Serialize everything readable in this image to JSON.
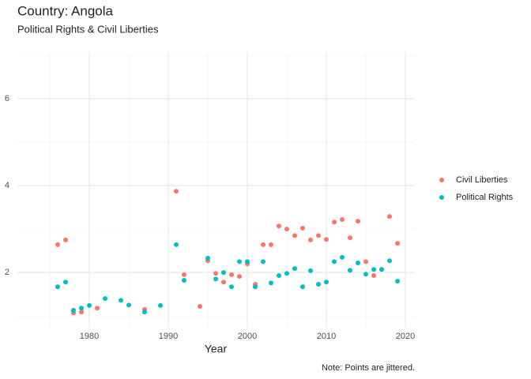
{
  "chart_data": {
    "type": "scatter",
    "title": "Country: Angola",
    "subtitle": "Political Rights & Civil Liberties",
    "x_label": "Year",
    "caption": "Note: Points are jittered.",
    "xlim": [
      1970.9,
      2021.2
    ],
    "ylim": [
      0.73,
      7.09
    ],
    "xticks": [
      1980,
      1990,
      2000,
      2010,
      2020
    ],
    "yticks": [
      2,
      4,
      6
    ],
    "x_minor_grid": [
      1975,
      1985,
      1995,
      2005,
      2015
    ],
    "y_minor_grid": [
      1,
      3,
      5,
      7
    ],
    "grid": true,
    "legend_position": "right",
    "series": [
      {
        "name": "Civil Liberties",
        "color": "#F8766D",
        "x": [
          1976,
          1977,
          1978,
          1979,
          1981,
          1987,
          1991,
          1992,
          1994,
          1995,
          1996,
          1997,
          1998,
          1999,
          2000,
          2001,
          2002,
          2003,
          2004,
          2005,
          2006,
          2007,
          2008,
          2009,
          2010,
          2011,
          2012,
          2013,
          2014,
          2015,
          2016,
          2017,
          2018,
          2019
        ],
        "values": [
          2.64,
          2.75,
          1.07,
          1.09,
          1.18,
          1.15,
          3.87,
          1.95,
          1.22,
          2.27,
          1.98,
          1.78,
          1.95,
          1.91,
          2.2,
          1.73,
          2.64,
          2.64,
          3.07,
          3.0,
          2.85,
          3.02,
          2.75,
          2.85,
          2.76,
          3.16,
          3.22,
          2.8,
          3.18,
          2.25,
          1.93,
          2.07,
          3.29,
          2.67
        ]
      },
      {
        "name": "Political Rights",
        "color": "#00BFC4",
        "x": [
          1976,
          1977,
          1978,
          1979,
          1980,
          1982,
          1984,
          1985,
          1987,
          1989,
          1991,
          1992,
          1995,
          1996,
          1997,
          1998,
          1999,
          2000,
          2001,
          2002,
          2003,
          2004,
          2005,
          2006,
          2007,
          2008,
          2009,
          2010,
          2011,
          2012,
          2013,
          2014,
          2015,
          2016,
          2017,
          2018,
          2019
        ],
        "values": [
          1.67,
          1.78,
          1.13,
          1.18,
          1.24,
          1.4,
          1.36,
          1.25,
          1.09,
          1.24,
          2.64,
          1.82,
          2.33,
          1.85,
          2.0,
          1.67,
          2.25,
          2.25,
          1.67,
          2.25,
          1.76,
          1.93,
          1.98,
          2.09,
          1.67,
          2.04,
          1.73,
          1.78,
          2.25,
          2.35,
          2.05,
          2.22,
          1.96,
          2.07,
          2.07,
          2.27,
          1.8
        ]
      }
    ]
  }
}
